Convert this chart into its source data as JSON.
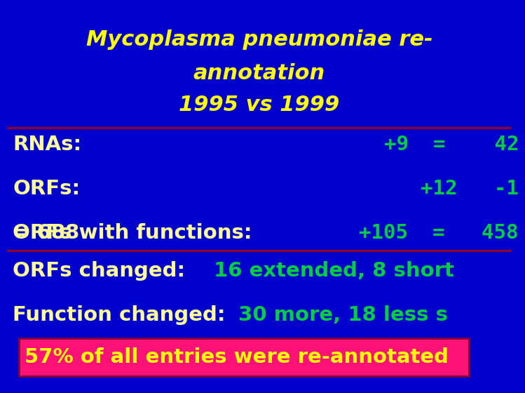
{
  "bg_color": "#0000CC",
  "title_line1": "Mycoplasma pneumoniae re-",
  "title_line2": "annotation",
  "title_line3": "1995 vs 1999",
  "title_color": "#FFFF00",
  "line_color": "#880033",
  "row1_label": "RNAs:",
  "row1_label_color": "#FFFF99",
  "row1_values": "+9  =    42",
  "row1_values_color": "#00CC44",
  "row2_label": "ORFs:",
  "row2_label_color": "#FFFF99",
  "row2_values": "+12   -1",
  "row2_values_color": "#00CC44",
  "row3_prefix": "= 688",
  "row3_label": "ORFs with functions:",
  "row3_label_color": "#FFFF99",
  "row3_values": "+105  =   458",
  "row3_values_color": "#00CC44",
  "row4_label": "ORFs changed: ",
  "row4_label_color": "#FFFF99",
  "row4_values": "16 extended, 8 short",
  "row4_values_color": "#00CC44",
  "row5_label": "Function changed: ",
  "row5_label_color": "#FFFF99",
  "row5_values": "30 more, 18 less s",
  "row5_values_color": "#00CC44",
  "box_bg": "#FF1177",
  "box_text": "57% of all entries were re-annotated",
  "box_text_color": "#FFFF00",
  "box_border": "#880033"
}
